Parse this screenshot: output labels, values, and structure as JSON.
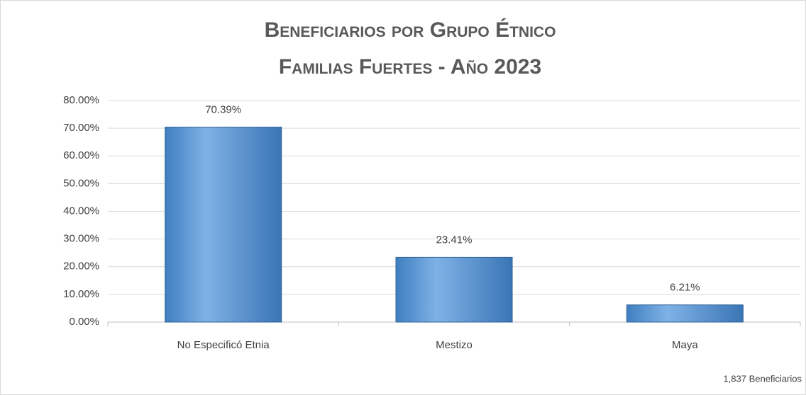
{
  "chart_data": {
    "type": "bar",
    "title": [
      "Beneficiarios por Grupo Étnico",
      "Familias Fuertes - Año 2023"
    ],
    "categories": [
      "No Especificó Etnia",
      "Mestizo",
      "Maya"
    ],
    "values": [
      70.39,
      23.41,
      6.21
    ],
    "value_labels": [
      "70.39%",
      "23.41%",
      "6.21%"
    ],
    "color": "#5b9bd5",
    "ylim": [
      0,
      80
    ],
    "yticks": [
      {
        "value": 0,
        "label": "0.00%"
      },
      {
        "value": 10,
        "label": "10.00%"
      },
      {
        "value": 20,
        "label": "20.00%"
      },
      {
        "value": 30,
        "label": "30.00%"
      },
      {
        "value": 40,
        "label": "40.00%"
      },
      {
        "value": 50,
        "label": "50.00%"
      },
      {
        "value": 60,
        "label": "60.00%"
      },
      {
        "value": 70,
        "label": "70.00%"
      },
      {
        "value": 80,
        "label": "80.00%"
      }
    ],
    "grid": true,
    "annotation": "1,837 Beneficiarios"
  }
}
